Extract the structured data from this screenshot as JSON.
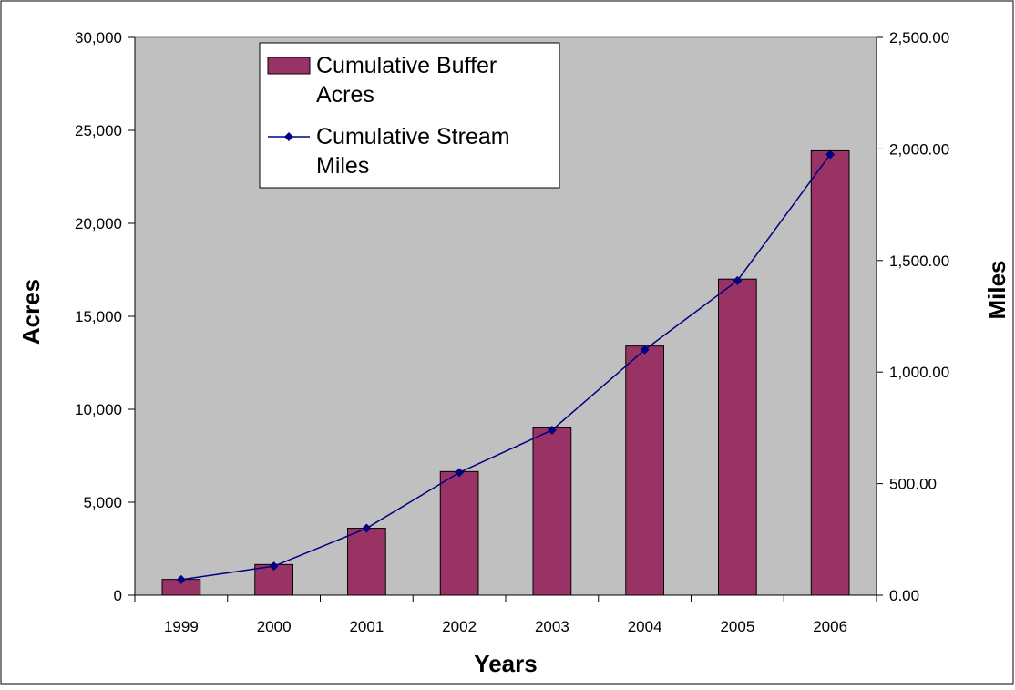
{
  "chart_data": {
    "type": "bar",
    "title": "",
    "xlabel": "Years",
    "ylabel": "Acres",
    "y2label": "Miles",
    "categories": [
      "1999",
      "2000",
      "2001",
      "2002",
      "2003",
      "2004",
      "2005",
      "2006"
    ],
    "series": [
      {
        "name": "Cumulative Buffer Acres",
        "type": "bar",
        "axis": "left",
        "values": [
          850,
          1650,
          3600,
          6650,
          9000,
          13400,
          17000,
          23900
        ]
      },
      {
        "name": "Cumulative Stream Miles",
        "type": "line",
        "axis": "right",
        "marker": "diamond",
        "values": [
          70,
          130,
          300,
          550,
          740,
          1100,
          1410,
          1975
        ]
      }
    ],
    "ylim": [
      0,
      30000
    ],
    "y2lim": [
      0,
      2500
    ],
    "yticks": [
      "0",
      "5,000",
      "10,000",
      "15,000",
      "20,000",
      "25,000",
      "30,000"
    ],
    "y2ticks": [
      "0.00",
      "500.00",
      "1,000.00",
      "1,500.00",
      "2,000.00",
      "2,500.00"
    ],
    "legend": {
      "position": "top-left",
      "entries": [
        [
          "Cumulative Buffer",
          "Acres"
        ],
        [
          "Cumulative Stream",
          "Miles"
        ]
      ]
    },
    "grid": false,
    "colors": {
      "bar": "#993366",
      "line": "#000080",
      "plot_background": "#c0c0c0"
    }
  }
}
